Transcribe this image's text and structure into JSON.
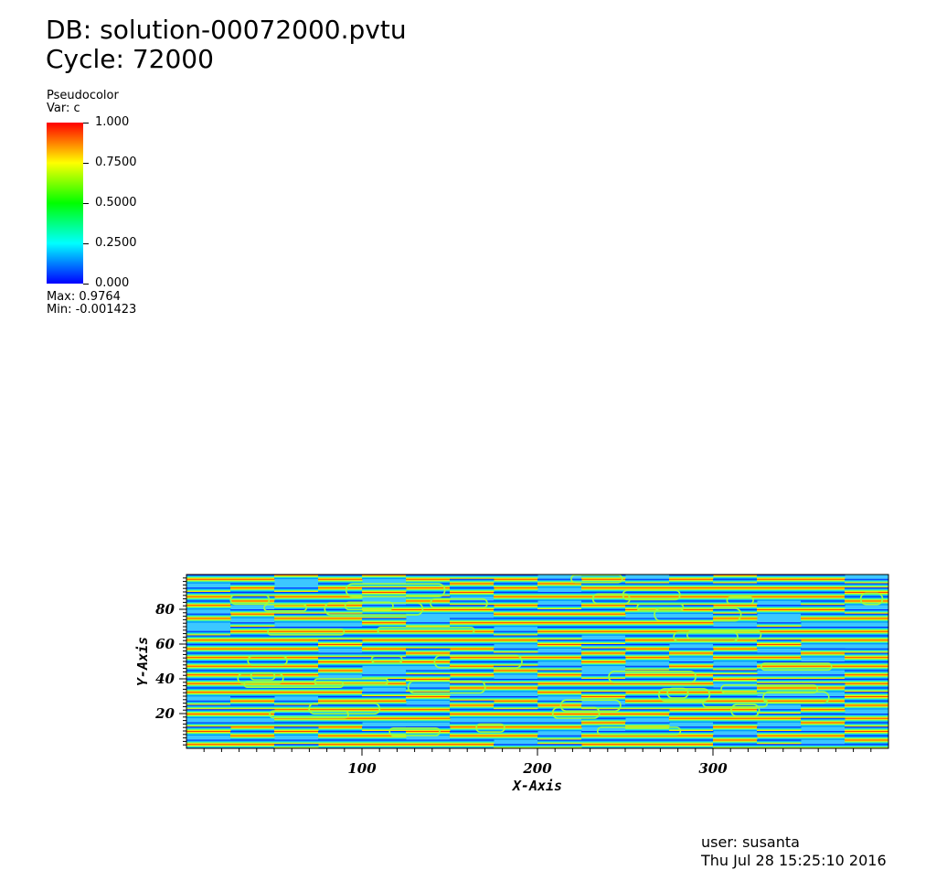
{
  "header": {
    "db": "DB: solution-00072000.pvtu",
    "cycle": "Cycle: 72000"
  },
  "legend": {
    "title": "Pseudocolor",
    "var": "Var: c",
    "ticks": [
      {
        "value": 1.0,
        "label": "1.000"
      },
      {
        "value": 0.75,
        "label": "0.7500"
      },
      {
        "value": 0.5,
        "label": "0.5000"
      },
      {
        "value": 0.25,
        "label": "0.2500"
      },
      {
        "value": 0.0,
        "label": "0.000"
      }
    ],
    "max": "Max:  0.9764",
    "min": "Min: -0.001423",
    "colors": [
      "#0000ff",
      "#00ffff",
      "#00ff00",
      "#ffff00",
      "#ff0000"
    ]
  },
  "footer": {
    "user": "user: susanta",
    "date": "Thu Jul 28 15:25:10 2016"
  },
  "chart_data": {
    "type": "heatmap",
    "xlabel": "X-Axis",
    "ylabel": "Y-Axis",
    "xlim": [
      0,
      400
    ],
    "ylim": [
      0,
      100
    ],
    "xticks": [
      100,
      200,
      300
    ],
    "yticks": [
      20,
      40,
      60,
      80
    ],
    "color_range": [
      0.0,
      1.0
    ],
    "pattern": "horizontal lamellar stripes with defects"
  }
}
